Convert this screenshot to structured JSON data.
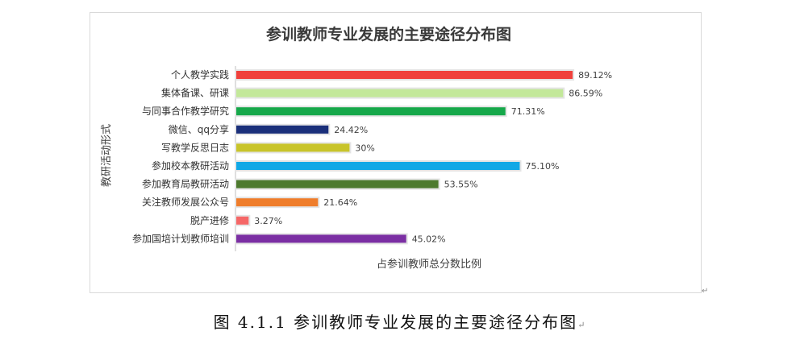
{
  "chart_data": {
    "type": "bar",
    "orientation": "horizontal",
    "title": "参训教师专业发展的主要途径分布图",
    "xlabel": "占参训教师总分数比例",
    "ylabel": "教研活动形式",
    "xlim": [
      0,
      100
    ],
    "grid": false,
    "categories": [
      "个人教学实践",
      "集体备课、研课",
      "与同事合作教学研究",
      "微信、qq分享",
      "写教学反思日志",
      "参加校本教研活动",
      "参加教育局教研活动",
      "关注教师发展公众号",
      "脱产进修",
      "参加国培计划教师培训"
    ],
    "values": [
      89.12,
      86.59,
      71.31,
      24.42,
      30,
      75.1,
      53.55,
      21.64,
      3.27,
      45.02
    ],
    "value_labels": [
      "89.12%",
      "86.59%",
      "71.31%",
      "24.42%",
      "30%",
      "75.10%",
      "53.55%",
      "21.64%",
      "3.27%",
      "45.02%"
    ],
    "colors": [
      "#f0413c",
      "#c3e89a",
      "#16a84a",
      "#1a2f7a",
      "#c8c42a",
      "#11a8e6",
      "#4d7a2e",
      "#ef7d2b",
      "#f56767",
      "#7b2fa3"
    ]
  },
  "caption": "图 4.1.1 参训教师专业发展的主要途径分布图",
  "caption_mark": "↵",
  "frame_mark": "↵"
}
